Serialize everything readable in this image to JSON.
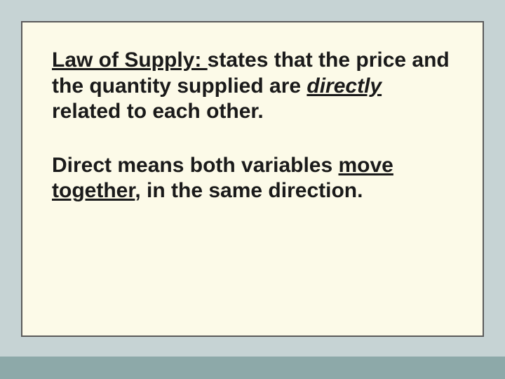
{
  "slide": {
    "background_color": "#c6d3d4",
    "content_background": "#fcfae8",
    "content_border_color": "#5a5a5a",
    "stripe_color": "#8da9a9",
    "text_color": "#1a1a1a",
    "font_family": "Comic Sans MS",
    "font_size_pt": 30,
    "paragraphs": {
      "p1": {
        "seg1_underlined": "Law of Supply: ",
        "seg2": "states that the price and the quantity supplied are ",
        "seg3_italic_underlined": "directly",
        "seg4": " related to each other."
      },
      "p2": {
        "seg1": "Direct means both variables ",
        "seg2_underlined": "move together",
        "seg3": ", in the same direction."
      }
    }
  }
}
